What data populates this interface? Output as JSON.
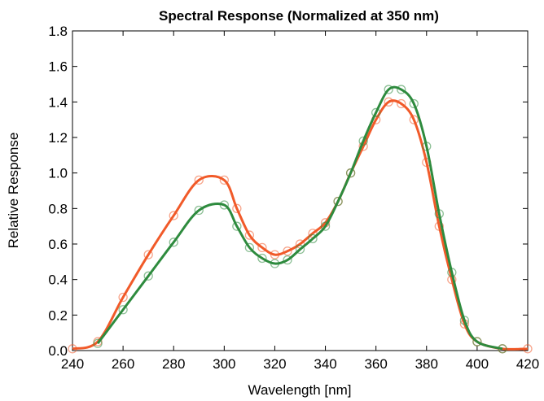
{
  "chart_data": {
    "type": "line",
    "title": "Spectral Response (Normalized at 350 nm)",
    "xlabel": "Wavelength [nm]",
    "ylabel": "Relative Response",
    "xlim": [
      240,
      420
    ],
    "ylim": [
      0.0,
      1.8
    ],
    "xticks": [
      "240",
      "260",
      "280",
      "300",
      "320",
      "340",
      "360",
      "380",
      "400",
      "420"
    ],
    "yticks": [
      "0.0",
      "0.2",
      "0.4",
      "0.6",
      "0.8",
      "1.0",
      "1.2",
      "1.4",
      "1.6",
      "1.8"
    ],
    "grid": false,
    "legend": "none",
    "series": [
      {
        "color": "#f15a29",
        "marker": "circle",
        "points": [
          [
            240,
            0.01
          ],
          [
            250,
            0.05
          ],
          [
            260,
            0.3
          ],
          [
            270,
            0.54
          ],
          [
            280,
            0.76
          ],
          [
            290,
            0.96
          ],
          [
            300,
            0.96
          ],
          [
            305,
            0.8
          ],
          [
            310,
            0.65
          ],
          [
            315,
            0.58
          ],
          [
            320,
            0.54
          ],
          [
            325,
            0.56
          ],
          [
            330,
            0.6
          ],
          [
            335,
            0.66
          ],
          [
            340,
            0.72
          ],
          [
            345,
            0.84
          ],
          [
            350,
            1.0
          ],
          [
            355,
            1.15
          ],
          [
            360,
            1.3
          ],
          [
            365,
            1.4
          ],
          [
            370,
            1.39
          ],
          [
            375,
            1.3
          ],
          [
            380,
            1.06
          ],
          [
            385,
            0.7
          ],
          [
            390,
            0.4
          ],
          [
            395,
            0.15
          ],
          [
            400,
            0.05
          ],
          [
            410,
            0.01
          ],
          [
            420,
            0.01
          ]
        ]
      },
      {
        "color": "#2e8b3e",
        "marker": "circle",
        "points": [
          [
            250,
            0.04
          ],
          [
            260,
            0.23
          ],
          [
            270,
            0.42
          ],
          [
            280,
            0.61
          ],
          [
            290,
            0.79
          ],
          [
            300,
            0.82
          ],
          [
            305,
            0.7
          ],
          [
            310,
            0.58
          ],
          [
            315,
            0.52
          ],
          [
            320,
            0.49
          ],
          [
            325,
            0.51
          ],
          [
            330,
            0.57
          ],
          [
            335,
            0.63
          ],
          [
            340,
            0.7
          ],
          [
            345,
            0.84
          ],
          [
            350,
            1.0
          ],
          [
            355,
            1.18
          ],
          [
            360,
            1.34
          ],
          [
            365,
            1.47
          ],
          [
            370,
            1.47
          ],
          [
            375,
            1.39
          ],
          [
            380,
            1.15
          ],
          [
            385,
            0.77
          ],
          [
            390,
            0.44
          ],
          [
            395,
            0.17
          ],
          [
            400,
            0.05
          ],
          [
            410,
            0.01
          ]
        ]
      }
    ]
  }
}
